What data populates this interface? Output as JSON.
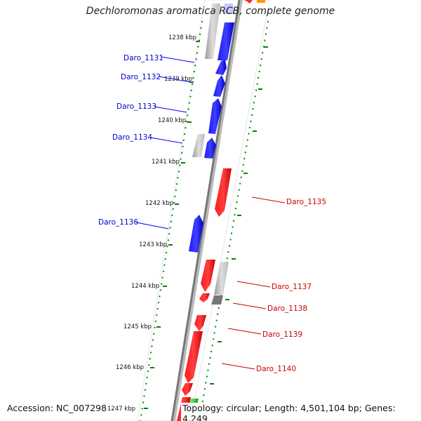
{
  "title": "Dechloromonas aromatica RCB, complete genome",
  "footer": {
    "accession": "Accession: NC_007298",
    "summary": "Topology: circular; Length: 4,501,104 bp; Genes: 4,249"
  },
  "colors": {
    "forward_gene": "#ff0000",
    "reverse_gene": "#0000ff",
    "rna_gene": "#00cc00",
    "other_feature": "#888888",
    "scale_tick": "#008000"
  },
  "scale_labels": [
    "1238 kbp",
    "1239 kbp",
    "1240 kbp",
    "1241 kbp",
    "1242 kbp",
    "1243 kbp",
    "1244 kbp",
    "1245 kbp",
    "1246 kbp",
    "1247 kbp"
  ],
  "gene_labels_reverse": [
    "Daro_1131",
    "Daro_1132",
    "Daro_1133",
    "Daro_1134",
    "Daro_1136"
  ],
  "gene_labels_forward": [
    "Daro_1135",
    "Daro_1137",
    "Daro_1138",
    "Daro_1139",
    "Daro_1140"
  ]
}
